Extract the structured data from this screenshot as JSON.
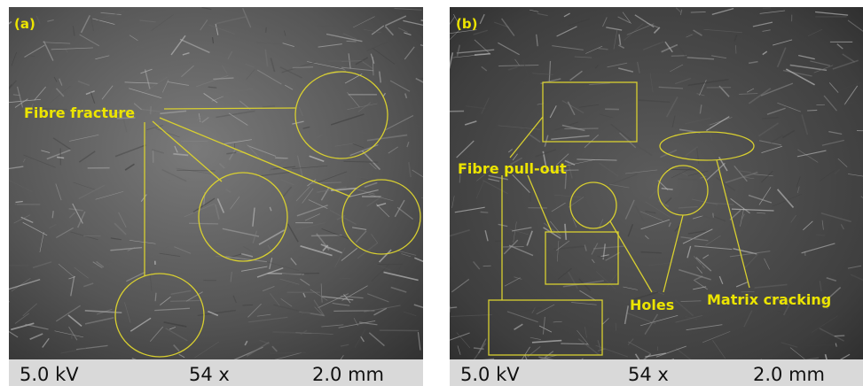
{
  "panels": [
    {
      "label": "(a)",
      "annotations": [
        "Fibre fracture"
      ],
      "scale_bar": {
        "voltage": "5.0 kV",
        "magnification": "54 x",
        "scale": "2.0 mm"
      }
    },
    {
      "label": "(b)",
      "annotations": [
        "Fibre pull-out",
        "Holes",
        "Matrix cracking"
      ],
      "scale_bar": {
        "voltage": "5.0 kV",
        "magnification": "54 x",
        "scale": "2.0 mm"
      }
    }
  ]
}
